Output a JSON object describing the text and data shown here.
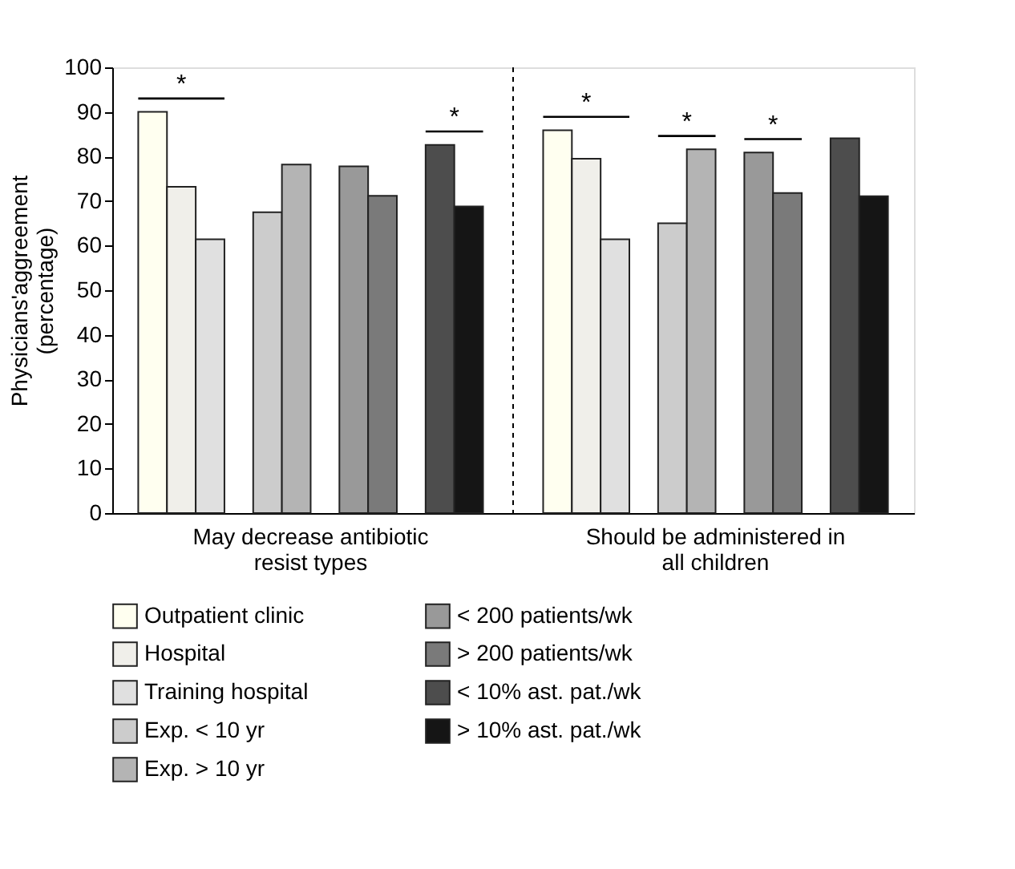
{
  "chart_data": {
    "type": "bar",
    "categories": [
      "May decrease antibiotic resist types",
      "Should be administered in all children"
    ],
    "ylabel": "Physicians'aggreement (percentage)",
    "series": [
      {
        "name": "Outpatient clinic",
        "color": "#fffff0",
        "values": [
          90,
          85.9
        ]
      },
      {
        "name": "Hospital",
        "color": "#f0efea",
        "values": [
          73.2,
          79.5
        ]
      },
      {
        "name": "Training hospital",
        "color": "#e0e0e0",
        "values": [
          61.4,
          61.4
        ]
      },
      {
        "name": "Exp. < 10 yr",
        "color": "#cccccc",
        "values": [
          67.5,
          65
        ]
      },
      {
        "name": "Exp. > 10 yr",
        "color": "#b4b4b4",
        "values": [
          78.2,
          81.6
        ]
      },
      {
        "name": "< 200 patients/wk",
        "color": "#999999",
        "values": [
          77.8,
          80.9
        ]
      },
      {
        "name": "> 200 patients/wk",
        "color": "#7a7a7a",
        "values": [
          71.2,
          71.8
        ]
      },
      {
        "name": "< 10% ast. pat./wk",
        "color": "#4d4d4d",
        "values": [
          82.6,
          84.1
        ]
      },
      {
        "name": "> 10% ast. pat./wk",
        "color": "#151515",
        "values": [
          68.8,
          71.1
        ]
      }
    ],
    "ylim": [
      0,
      100
    ],
    "yticks": [
      0,
      10,
      20,
      30,
      40,
      50,
      60,
      70,
      80,
      90,
      100
    ],
    "grid": false,
    "legend": "bottom",
    "annotations": [
      "*",
      "*",
      "*",
      "*",
      "*"
    ]
  }
}
